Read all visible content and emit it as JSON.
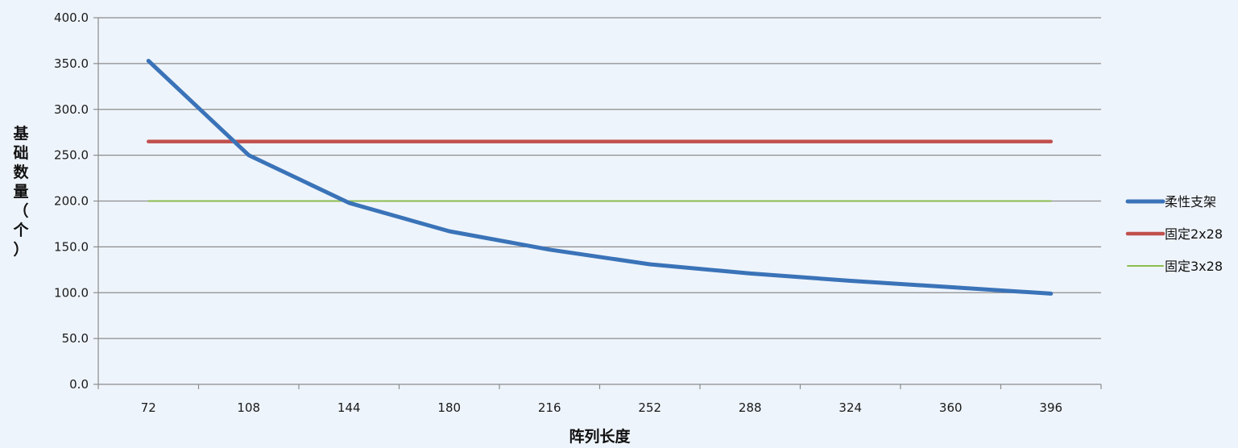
{
  "chart_data": {
    "type": "line",
    "xlabel": "阵列长度",
    "ylabel": "基础数量（个）",
    "categories": [
      "72",
      "108",
      "144",
      "180",
      "216",
      "252",
      "288",
      "324",
      "360",
      "396"
    ],
    "ylim": [
      0,
      400
    ],
    "yticks": [
      "0.0",
      "50.0",
      "100.0",
      "150.0",
      "200.0",
      "250.0",
      "300.0",
      "350.0",
      "400.0"
    ],
    "grid": true,
    "legend": "right",
    "series": [
      {
        "name": "柔性支架",
        "color": "#3a73b8",
        "values": [
          353,
          250,
          198,
          167,
          147,
          131,
          121,
          113,
          106,
          99
        ]
      },
      {
        "name": "固定2x28",
        "color": "#c0504d",
        "values": [
          265,
          265,
          265,
          265,
          265,
          265,
          265,
          265,
          265,
          265
        ]
      },
      {
        "name": "固定3x28",
        "color": "#8cbc4f",
        "values": [
          200,
          200,
          200,
          200,
          200,
          200,
          200,
          200,
          200,
          200
        ]
      }
    ]
  }
}
